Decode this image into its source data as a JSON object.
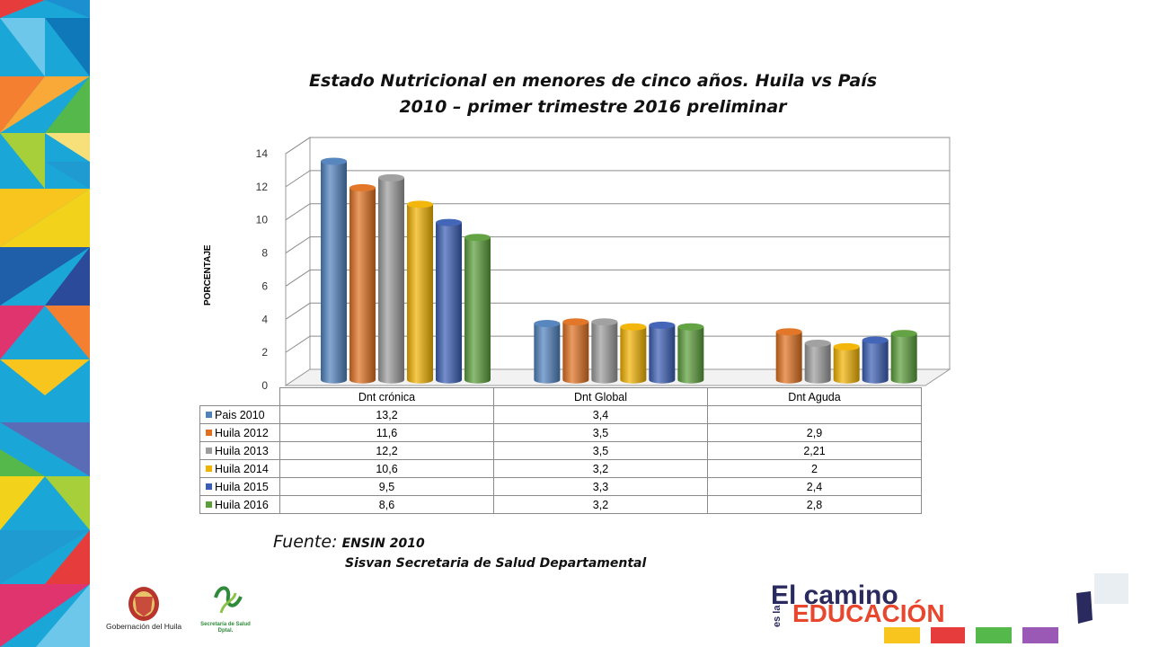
{
  "slide": {
    "title_line1": "Estado Nutricional en menores de cinco años. Huila vs País",
    "title_line2": "2010 – primer trimestre 2016 preliminar",
    "source_label": "Fuente:",
    "source_1": "ENSIN 2010",
    "source_2": "Sisvan Secretaria de Salud Departamental",
    "logo_gobernacion": "Gobernación del Huila",
    "logo_secretaria_line1": "Secretaría de Salud",
    "logo_secretaria_line2": "Dptal.",
    "logo_camino": "El camino",
    "logo_esla": "es la",
    "logo_educacion": "EDUCACIÓN"
  },
  "chart_data": {
    "type": "bar",
    "ylabel": "PORCENTAJE",
    "ylim": [
      0,
      14
    ],
    "yticks": [
      0,
      2,
      4,
      6,
      8,
      10,
      12,
      14
    ],
    "grid": true,
    "categories": [
      "Dnt crónica",
      "Dnt Global",
      "Dnt Aguda"
    ],
    "series": [
      {
        "name": "Pais 2010",
        "color": "#4f81bd",
        "values": [
          13.2,
          3.4,
          null
        ],
        "labels": [
          "13,2",
          "3,4",
          ""
        ]
      },
      {
        "name": "Huila 2012",
        "color": "#e0701f",
        "values": [
          11.6,
          3.5,
          2.9
        ],
        "labels": [
          "11,6",
          "3,5",
          "2,9"
        ]
      },
      {
        "name": "Huila 2013",
        "color": "#9c9c9c",
        "values": [
          12.2,
          3.5,
          2.21
        ],
        "labels": [
          "12,2",
          "3,5",
          "2,21"
        ]
      },
      {
        "name": "Huila 2014",
        "color": "#f2b200",
        "values": [
          10.6,
          3.2,
          2
        ],
        "labels": [
          "10,6",
          "3,2",
          "2"
        ]
      },
      {
        "name": "Huila 2015",
        "color": "#3a5eb5",
        "values": [
          9.5,
          3.3,
          2.4
        ],
        "labels": [
          "9,5",
          "3,3",
          "2,4"
        ]
      },
      {
        "name": "Huila 2016",
        "color": "#5b9e3a",
        "values": [
          8.6,
          3.2,
          2.8
        ],
        "labels": [
          "8,6",
          "3,2",
          "2,8"
        ]
      }
    ]
  }
}
